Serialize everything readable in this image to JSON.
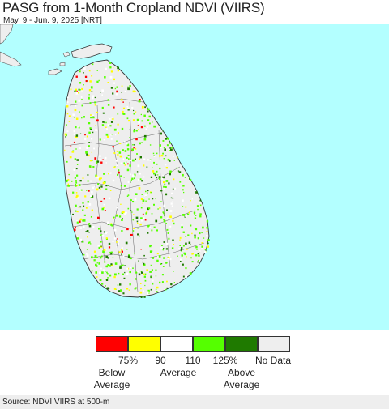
{
  "header": {
    "title": "PASG from 1-Month Cropland NDVI (VIIRS)",
    "subtitle": "May. 9 - Jun. 9, 2025 [NRT]"
  },
  "map": {
    "ocean_color": "#b3ffff",
    "land_color": "#eeeeee",
    "region": "Sri Lanka"
  },
  "legend": {
    "colors": [
      "#ff0000",
      "#ffff00",
      "#ffffff",
      "#55ff00",
      "#1f7a00",
      "#eeeeee"
    ],
    "ticks": [
      "75%",
      "90",
      "110",
      "125%",
      "No Data"
    ],
    "below_label_1": "Below",
    "below_label_2": "Average",
    "average_label": "Average",
    "above_label_1": "Above",
    "above_label_2": "Average"
  },
  "footer": {
    "source": "Source: NDVI VIIRS at 500-m"
  }
}
